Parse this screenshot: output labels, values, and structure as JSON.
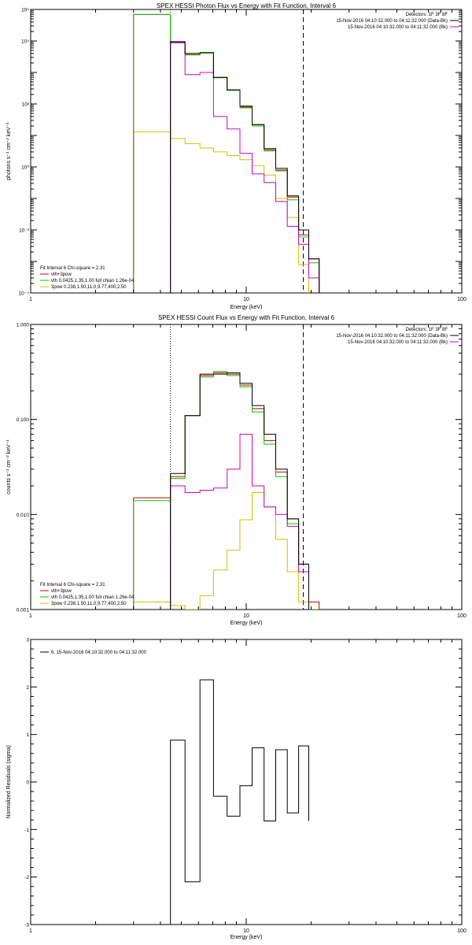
{
  "chart_data": [
    {
      "type": "line",
      "title": "SPEX HESSI Photon Flux vs Energy with Fit Function, Interval 6",
      "xlabel": "Energy (keV)",
      "ylabel": "photons s⁻¹ cm⁻² keV⁻¹",
      "xscale": "log",
      "yscale": "log",
      "xlim": [
        1,
        100
      ],
      "ylim": [
        0.0001,
        100000
      ],
      "x_ticks": [
        {
          "v": 1,
          "label": "1"
        },
        {
          "v": 10,
          "label": "10"
        },
        {
          "v": 100,
          "label": "100"
        }
      ],
      "y_ticks": [
        {
          "v": 0.0001,
          "label": "10⁻⁴"
        },
        {
          "v": 0.01,
          "label": "10⁻²"
        },
        {
          "v": 1,
          "label": "10⁰"
        },
        {
          "v": 100,
          "label": "10²"
        },
        {
          "v": 10000,
          "label": "10⁴"
        },
        {
          "v": 100000,
          "label": "10⁵"
        }
      ],
      "vlines": [
        {
          "x": 4.45,
          "style": "dotted"
        },
        {
          "x": 18.4,
          "style": "dashed"
        }
      ],
      "edges": [
        3.0,
        4.45,
        5.2,
        6.1,
        7.05,
        8.15,
        9.35,
        10.65,
        12.1,
        13.7,
        15.5,
        17.5,
        19.5,
        21.8
      ],
      "info_lines": [
        "Detectors: 1F 3F 8F",
        "15-Nov-2016 04:10:32.000 to 04:11:32.000 (Data-Bk)",
        "15-Nov-2016 04:10:32.000 to 04:11:32.000 (Bk)"
      ],
      "info_colors": [
        "",
        "#000000",
        "#cc00cc"
      ],
      "legend_lines": [
        "Fit Interval 6   Chi-square = 2.31",
        "vth+3pow",
        "vth 0.0425,1.35,1.00  full chian 1.26e-04",
        "3pow 0.238,1.50,11.0,9.77,400,2.50"
      ],
      "legend_colors": [
        "",
        "#cc0000",
        "#00cc00",
        "#d4c000"
      ],
      "series": [
        {
          "name": "15-Nov-2016 04:10:32.000 to 04:11:32.000 (Data-Bk)",
          "color": "#000000",
          "start": 1,
          "values": [
            9500,
            4000,
            4300,
            700,
            280,
            85,
            22,
            3.8,
            0.9,
            0.12,
            0.01,
            0.0012
          ]
        },
        {
          "name": "15-Nov-2016 04:10:32.000 to 04:11:32.000 (Bk)",
          "color": "#cc00cc",
          "start": 1,
          "values": [
            8800,
            850,
            1000,
            40,
            16,
            2.7,
            0.6,
            0.32,
            0.08,
            0.013,
            0.0035,
            0.0003
          ]
        },
        {
          "name": "vth+3pow",
          "color": "#cc0000",
          "start": 0,
          "values": [
            69000,
            9000,
            3700,
            4200,
            700,
            280,
            80,
            22,
            3.5,
            0.8,
            0.11,
            0.007,
            0.0012
          ]
        },
        {
          "name": "vth 0.0425,1.35,1.00  full chian 1.26e-04",
          "color": "#00cc00",
          "start": 0,
          "values": [
            69000,
            8700,
            3600,
            4100,
            680,
            270,
            75,
            20,
            3.2,
            0.75,
            0.09,
            0.006,
            0.0009
          ]
        },
        {
          "name": "3pow 0.238,1.50,11.0,9.77,400,2.50",
          "color": "#d4c000",
          "start": 0,
          "values": [
            13,
            8,
            5.5,
            4,
            3,
            2.3,
            1.7,
            1.1,
            0.55,
            0.1,
            0.025,
            0.0008
          ]
        }
      ]
    },
    {
      "type": "line",
      "title": "SPEX HESSI Count Flux vs Energy with Fit Function, Interval 6",
      "xlabel": "Energy (keV)",
      "ylabel": "counts s⁻¹ cm⁻² keV⁻¹",
      "xscale": "log",
      "yscale": "log",
      "xlim": [
        1,
        100
      ],
      "ylim": [
        0.001,
        1
      ],
      "x_ticks": [
        {
          "v": 1,
          "label": "1"
        },
        {
          "v": 10,
          "label": "10"
        },
        {
          "v": 100,
          "label": "100"
        }
      ],
      "y_ticks": [
        {
          "v": 0.001,
          "label": "0.001"
        },
        {
          "v": 0.01,
          "label": "0.010"
        },
        {
          "v": 0.1,
          "label": "0.100"
        },
        {
          "v": 1,
          "label": "1.000"
        }
      ],
      "vlines": [
        {
          "x": 4.45,
          "style": "dotted"
        },
        {
          "x": 18.4,
          "style": "dashed"
        }
      ],
      "edges": [
        3.0,
        4.45,
        5.2,
        6.1,
        7.05,
        8.15,
        9.35,
        10.65,
        12.1,
        13.7,
        15.5,
        17.5,
        19.5,
        21.8
      ],
      "info_lines": [
        "Detectors: 1F 3F 8F",
        "15-Nov-2016 04:10:32.000 to 04:11:32.000 (Data-Bk)",
        "15-Nov-2016 04:10:32.000 to 04:11:32.000 (Bk)"
      ],
      "info_colors": [
        "",
        "#000000",
        "#cc00cc"
      ],
      "legend_lines": [
        "Fit Interval 6   Chi-square = 2.31",
        "vth+3pow",
        "vth 0.0425,1.35,1.00  full chian 1.26e-04",
        "3pow 0.238,1.50,11.0,9.77,400,2.50"
      ],
      "legend_colors": [
        "",
        "#cc0000",
        "#00cc00",
        "#d4c000"
      ],
      "series": [
        {
          "name": "15-Nov-2016 04:10:32.000 to 04:11:32.000 (Data-Bk)",
          "color": "#000000",
          "start": 1,
          "values": [
            0.027,
            0.11,
            0.3,
            0.3,
            0.31,
            0.24,
            0.14,
            0.07,
            0.03,
            0.009,
            0.003
          ]
        },
        {
          "name": "15-Nov-2016 04:10:32.000 to 04:11:32.000 (Bk)",
          "color": "#cc00cc",
          "start": 1,
          "values": [
            0.02,
            0.017,
            0.018,
            0.019,
            0.03,
            0.07,
            0.02,
            0.012,
            0.01,
            0.0075,
            0.0025
          ]
        },
        {
          "name": "vth+3pow",
          "color": "#cc0000",
          "start": 0,
          "values": [
            0.015,
            0.025,
            0.11,
            0.29,
            0.31,
            0.3,
            0.23,
            0.13,
            0.06,
            0.028,
            0.009,
            0.003,
            0.0012
          ]
        },
        {
          "name": "vth 0.0425,1.35,1.00  full chian 1.26e-04",
          "color": "#00cc00",
          "start": 0,
          "values": [
            0.014,
            0.024,
            0.11,
            0.28,
            0.32,
            0.29,
            0.22,
            0.12,
            0.055,
            0.025,
            0.008,
            0.0025,
            0.001
          ]
        },
        {
          "name": "3pow 0.238,1.50,11.0,9.77,400,2.50",
          "color": "#d4c000",
          "start": 0,
          "values": [
            0.0012,
            0.0011,
            0.0009,
            0.0014,
            0.0026,
            0.0042,
            0.0088,
            0.017,
            0.012,
            0.0055,
            0.0025,
            0.0012
          ]
        }
      ]
    },
    {
      "type": "line",
      "title": "",
      "xlabel": "Energy (keV)",
      "ylabel": "Normalized Residuals (sigma)",
      "xscale": "log",
      "yscale": "linear",
      "xlim": [
        1,
        100
      ],
      "ylim": [
        -3,
        3
      ],
      "x_ticks": [
        {
          "v": 1,
          "label": "1"
        },
        {
          "v": 10,
          "label": "10"
        },
        {
          "v": 100,
          "label": "100"
        }
      ],
      "y_ticks": [
        {
          "v": -3,
          "label": "-3"
        },
        {
          "v": -2,
          "label": "-2"
        },
        {
          "v": -1,
          "label": "-1"
        },
        {
          "v": 0,
          "label": "0"
        },
        {
          "v": 1,
          "label": "1"
        },
        {
          "v": 2,
          "label": "2"
        },
        {
          "v": 3,
          "label": "3"
        }
      ],
      "vlines": [],
      "edges": [
        4.45,
        5.2,
        6.1,
        7.05,
        8.15,
        9.35,
        10.65,
        12.1,
        13.7,
        15.5,
        17.5,
        19.5
      ],
      "info_lines": [],
      "info_colors": [],
      "legend_lines": [
        "6, 15-Nov-2016 04:10:32.000 to 04:11:32.000"
      ],
      "legend_colors": [
        "#000000"
      ],
      "series": [
        {
          "name": "6, 15-Nov-2016 04:10:32.000 to 04:11:32.000",
          "color": "#000000",
          "start": 0,
          "drop_to_axis": true,
          "values": [
            0.88,
            -2.1,
            2.15,
            -0.3,
            -0.72,
            -0.08,
            0.72,
            -0.82,
            0.68,
            -0.65,
            0.76,
            -0.82
          ]
        }
      ]
    }
  ]
}
